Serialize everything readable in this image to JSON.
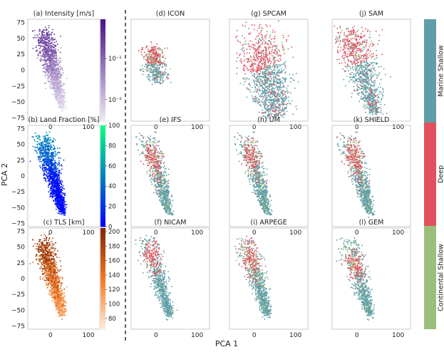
{
  "figure": {
    "ylabel": "PCA 2",
    "xlabel": "PCA 1"
  },
  "legend_bar": {
    "segments": [
      {
        "label": "Marine Shallow",
        "color": "#5f9ea8"
      },
      {
        "label": "Deep",
        "color": "#e2505f"
      },
      {
        "label": "Continental Shallow",
        "color": "#9bbf7a"
      }
    ]
  },
  "colors": {
    "marine_shallow": "#5f9ea8",
    "deep": "#e2505f",
    "continental_shallow": "#9bbf7a"
  },
  "chart_data": [
    {
      "id": "a",
      "type": "scatter",
      "title": "(a) Intensity [m/s]",
      "color_variable": "Intensity",
      "colormap": "Purples",
      "xticks": [
        "0",
        "100"
      ],
      "yticks": [
        "75",
        "50",
        "25",
        "0",
        "−25",
        "−50",
        "−75"
      ],
      "colorbar": {
        "scale": "log",
        "ticks": [
          "10⁻¹",
          "10⁻²"
        ],
        "tick_values": [
          0.1,
          0.01
        ],
        "range": [
          0.003,
          0.9
        ]
      },
      "xlim": [
        -60,
        130
      ],
      "ylim": [
        -80,
        80
      ]
    },
    {
      "id": "b",
      "type": "scatter",
      "title": "(b) Land Fraction [%]",
      "color_variable": "Land Fraction",
      "colormap": "winter",
      "xticks": [
        "0",
        "100"
      ],
      "yticks": [
        "75",
        "50",
        "25",
        "0",
        "−25",
        "−50",
        "−75"
      ],
      "colorbar": {
        "scale": "linear",
        "ticks": [
          "100",
          "80",
          "60",
          "40",
          "20",
          "0"
        ],
        "tick_values": [
          100,
          80,
          60,
          40,
          20,
          0
        ],
        "range": [
          0,
          100
        ]
      },
      "xlim": [
        -60,
        130
      ],
      "ylim": [
        -80,
        80
      ]
    },
    {
      "id": "c",
      "type": "scatter",
      "title": "(c) TLS [km]",
      "color_variable": "TLS",
      "colormap": "Oranges",
      "xticks": [
        "0",
        "100"
      ],
      "yticks": [
        "75",
        "50",
        "25",
        "0",
        "−25",
        "−50",
        "−75"
      ],
      "colorbar": {
        "scale": "linear",
        "ticks": [
          "200",
          "180",
          "160",
          "140",
          "120",
          "100",
          "80"
        ],
        "tick_values": [
          200,
          180,
          160,
          140,
          120,
          100,
          80
        ],
        "range": [
          65,
          205
        ]
      },
      "xlim": [
        -60,
        130
      ],
      "ylim": [
        -80,
        80
      ]
    },
    {
      "id": "d",
      "type": "scatter",
      "title": "(d) ICON",
      "xticks": [
        "0",
        "100"
      ],
      "xlim": [
        -60,
        130
      ],
      "ylim": [
        -80,
        80
      ]
    },
    {
      "id": "e",
      "type": "scatter",
      "title": "(e) IFS",
      "xticks": [
        "0",
        "100"
      ],
      "xlim": [
        -60,
        130
      ],
      "ylim": [
        -80,
        80
      ]
    },
    {
      "id": "f",
      "type": "scatter",
      "title": "(f) NICAM",
      "xticks": [
        "0",
        "100"
      ],
      "xlim": [
        -60,
        130
      ],
      "ylim": [
        -80,
        80
      ]
    },
    {
      "id": "g",
      "type": "scatter",
      "title": "(g) SPCAM",
      "xticks": [
        "0",
        "100"
      ],
      "xlim": [
        -60,
        130
      ],
      "ylim": [
        -80,
        80
      ]
    },
    {
      "id": "h",
      "type": "scatter",
      "title": "(h) UM",
      "xticks": [
        "0",
        "100"
      ],
      "xlim": [
        -60,
        130
      ],
      "ylim": [
        -80,
        80
      ]
    },
    {
      "id": "i",
      "type": "scatter",
      "title": "(i) ARPEGE",
      "xticks": [
        "0",
        "100"
      ],
      "xlim": [
        -60,
        130
      ],
      "ylim": [
        -80,
        80
      ]
    },
    {
      "id": "j",
      "type": "scatter",
      "title": "(j) SAM",
      "xticks": [
        "0",
        "100"
      ],
      "xlim": [
        -60,
        130
      ],
      "ylim": [
        -80,
        80
      ]
    },
    {
      "id": "k",
      "type": "scatter",
      "title": "(k) SHIELD",
      "xticks": [
        "0",
        "100"
      ],
      "xlim": [
        -60,
        130
      ],
      "ylim": [
        -80,
        80
      ]
    },
    {
      "id": "l",
      "type": "scatter",
      "title": "(l) GEM",
      "xticks": [
        "0",
        "100"
      ],
      "xlim": [
        -60,
        130
      ],
      "ylim": [
        -80,
        80
      ]
    }
  ]
}
